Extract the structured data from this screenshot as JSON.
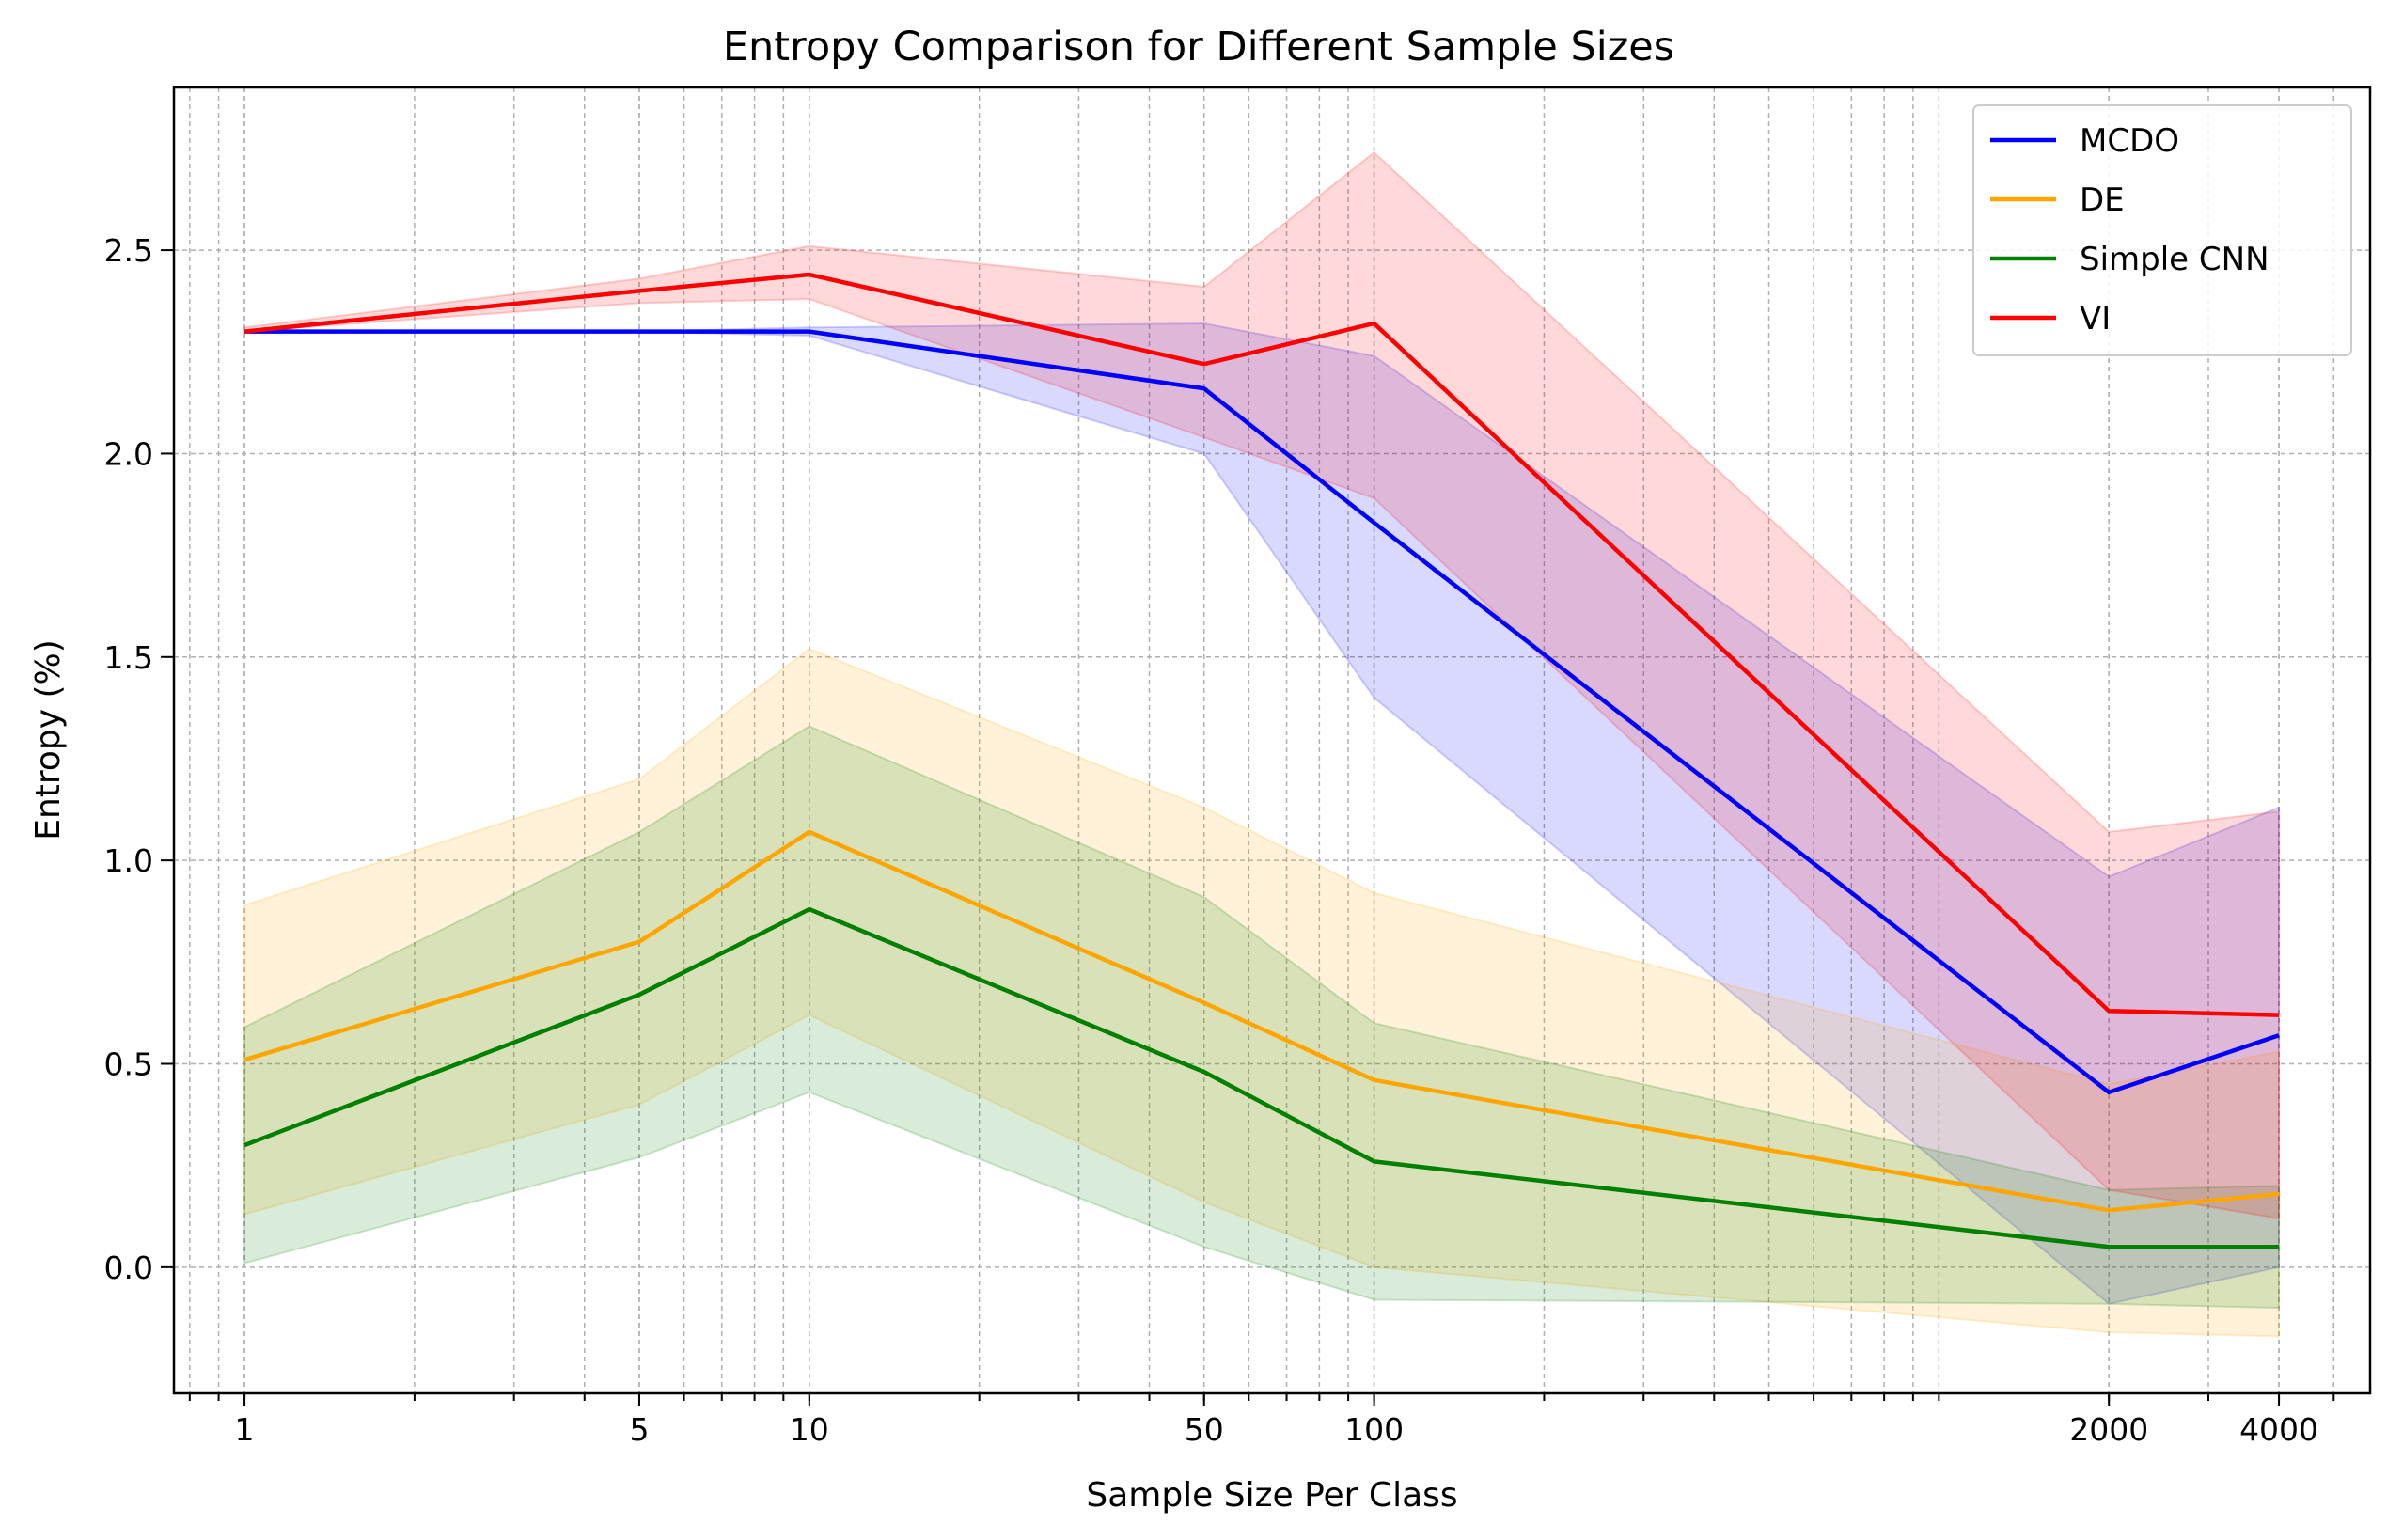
{
  "chart_data": {
    "type": "line",
    "title": "Entropy Comparison for Different Sample Sizes",
    "xlabel": "Sample Size Per Class",
    "ylabel": "Entropy (%)",
    "x_scale": "log",
    "grid": true,
    "legend_position": "top-right",
    "x_ticks": [
      1,
      5,
      10,
      50,
      100,
      2000,
      4000
    ],
    "x_tick_labels": [
      "1",
      "5",
      "10",
      "50",
      "100",
      "2000",
      "4000"
    ],
    "y_ticks": [
      0.0,
      0.5,
      1.0,
      1.5,
      2.0,
      2.5
    ],
    "y_tick_labels": [
      "0.0",
      "0.5",
      "1.0",
      "1.5",
      "2.0",
      "2.5"
    ],
    "ylim": [
      -0.31,
      2.9
    ],
    "x": [
      "1",
      "5",
      "10",
      "50",
      "100",
      "2000",
      "4000"
    ],
    "series": [
      {
        "name": "MCDO",
        "color": "#0000ff",
        "values": [
          2.3,
          2.3,
          2.3,
          2.16,
          1.83,
          0.43,
          0.57
        ],
        "lower": [
          2.3,
          2.3,
          2.29,
          2.0,
          1.4,
          -0.09,
          0.0
        ],
        "upper": [
          2.3,
          2.3,
          2.31,
          2.32,
          2.24,
          0.96,
          1.13
        ]
      },
      {
        "name": "DE",
        "color": "#ffa500",
        "values": [
          0.51,
          0.8,
          1.07,
          0.65,
          0.46,
          0.14,
          0.18
        ],
        "lower": [
          0.13,
          0.4,
          0.62,
          0.16,
          0.0,
          -0.16,
          -0.17
        ],
        "upper": [
          0.89,
          1.2,
          1.52,
          1.13,
          0.92,
          0.45,
          0.53
        ]
      },
      {
        "name": "Simple CNN",
        "color": "#008000",
        "values": [
          0.3,
          0.67,
          0.88,
          0.48,
          0.26,
          0.05,
          0.05
        ],
        "lower": [
          0.01,
          0.27,
          0.43,
          0.05,
          -0.08,
          -0.09,
          -0.1
        ],
        "upper": [
          0.59,
          1.07,
          1.33,
          0.91,
          0.6,
          0.19,
          0.2
        ]
      },
      {
        "name": "VI",
        "color": "#ff0000",
        "values": [
          2.3,
          2.4,
          2.44,
          2.22,
          2.32,
          0.63,
          0.62
        ],
        "lower": [
          2.3,
          2.37,
          2.38,
          2.04,
          1.89,
          0.19,
          0.12
        ],
        "upper": [
          2.31,
          2.43,
          2.51,
          2.41,
          2.74,
          1.07,
          1.12
        ]
      }
    ]
  }
}
